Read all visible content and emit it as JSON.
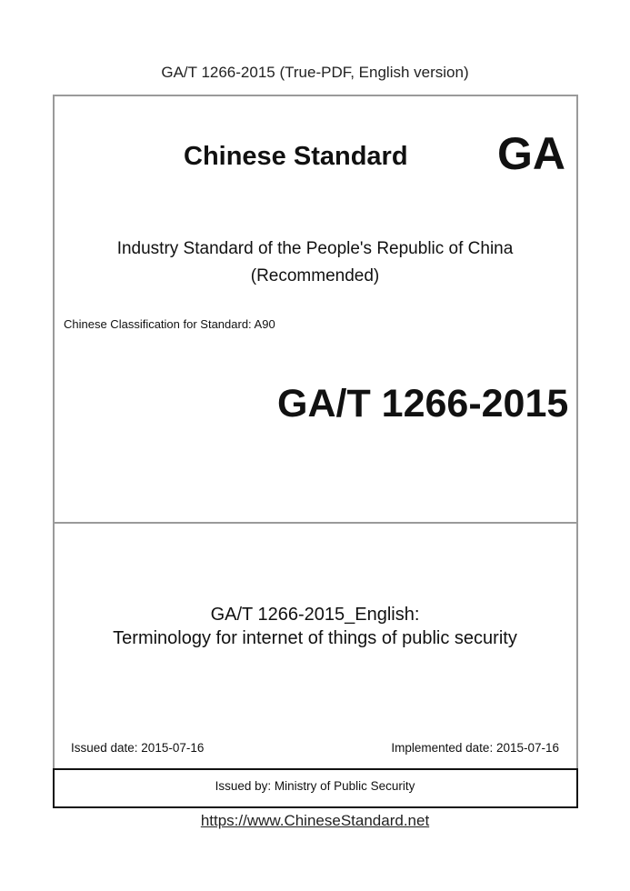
{
  "header": "GA/T 1266-2015 (True-PDF, English version)",
  "cover": {
    "title": "Chinese Standard",
    "logo": "GA",
    "industry_line1": "Industry Standard of the People's Republic of China",
    "industry_line2": "(Recommended)",
    "classification": "Chinese Classification for Standard: A90",
    "code": "GA/T 1266-2015",
    "english_line1": "GA/T 1266-2015_English:",
    "english_line2": "Terminology for internet of things of public security",
    "issued_date": "Issued date: 2015-07-16",
    "implemented_date": "Implemented date: 2015-07-16",
    "issued_by": "Issued by: Ministry of Public Security"
  },
  "footer": {
    "link": "https://www.ChineseStandard.net"
  }
}
